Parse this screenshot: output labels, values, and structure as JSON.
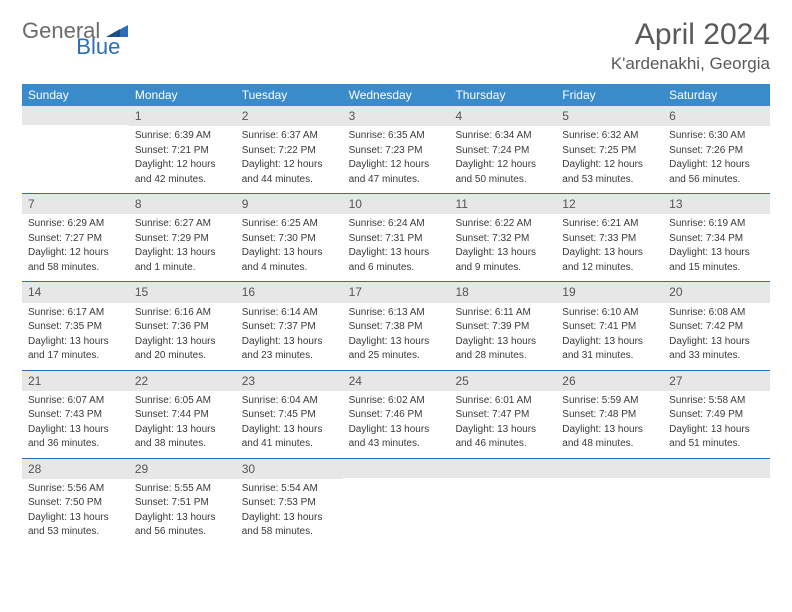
{
  "logo": {
    "part1": "General",
    "part2": "Blue"
  },
  "title": "April 2024",
  "location": "K'ardenakhi, Georgia",
  "colors": {
    "header_bg": "#3a8bc9",
    "header_text": "#ffffff",
    "daynum_bg": "#e7e7e7",
    "row_border": "#2a6fb5",
    "logo_gray": "#6b6b6b",
    "logo_blue": "#2a6fb5"
  },
  "weekdays": [
    "Sunday",
    "Monday",
    "Tuesday",
    "Wednesday",
    "Thursday",
    "Friday",
    "Saturday"
  ],
  "weeks": [
    [
      {
        "day": "",
        "sunrise": "",
        "sunset": "",
        "daylight1": "",
        "daylight2": ""
      },
      {
        "day": "1",
        "sunrise": "Sunrise: 6:39 AM",
        "sunset": "Sunset: 7:21 PM",
        "daylight1": "Daylight: 12 hours",
        "daylight2": "and 42 minutes."
      },
      {
        "day": "2",
        "sunrise": "Sunrise: 6:37 AM",
        "sunset": "Sunset: 7:22 PM",
        "daylight1": "Daylight: 12 hours",
        "daylight2": "and 44 minutes."
      },
      {
        "day": "3",
        "sunrise": "Sunrise: 6:35 AM",
        "sunset": "Sunset: 7:23 PM",
        "daylight1": "Daylight: 12 hours",
        "daylight2": "and 47 minutes."
      },
      {
        "day": "4",
        "sunrise": "Sunrise: 6:34 AM",
        "sunset": "Sunset: 7:24 PM",
        "daylight1": "Daylight: 12 hours",
        "daylight2": "and 50 minutes."
      },
      {
        "day": "5",
        "sunrise": "Sunrise: 6:32 AM",
        "sunset": "Sunset: 7:25 PM",
        "daylight1": "Daylight: 12 hours",
        "daylight2": "and 53 minutes."
      },
      {
        "day": "6",
        "sunrise": "Sunrise: 6:30 AM",
        "sunset": "Sunset: 7:26 PM",
        "daylight1": "Daylight: 12 hours",
        "daylight2": "and 56 minutes."
      }
    ],
    [
      {
        "day": "7",
        "sunrise": "Sunrise: 6:29 AM",
        "sunset": "Sunset: 7:27 PM",
        "daylight1": "Daylight: 12 hours",
        "daylight2": "and 58 minutes."
      },
      {
        "day": "8",
        "sunrise": "Sunrise: 6:27 AM",
        "sunset": "Sunset: 7:29 PM",
        "daylight1": "Daylight: 13 hours",
        "daylight2": "and 1 minute."
      },
      {
        "day": "9",
        "sunrise": "Sunrise: 6:25 AM",
        "sunset": "Sunset: 7:30 PM",
        "daylight1": "Daylight: 13 hours",
        "daylight2": "and 4 minutes."
      },
      {
        "day": "10",
        "sunrise": "Sunrise: 6:24 AM",
        "sunset": "Sunset: 7:31 PM",
        "daylight1": "Daylight: 13 hours",
        "daylight2": "and 6 minutes."
      },
      {
        "day": "11",
        "sunrise": "Sunrise: 6:22 AM",
        "sunset": "Sunset: 7:32 PM",
        "daylight1": "Daylight: 13 hours",
        "daylight2": "and 9 minutes."
      },
      {
        "day": "12",
        "sunrise": "Sunrise: 6:21 AM",
        "sunset": "Sunset: 7:33 PM",
        "daylight1": "Daylight: 13 hours",
        "daylight2": "and 12 minutes."
      },
      {
        "day": "13",
        "sunrise": "Sunrise: 6:19 AM",
        "sunset": "Sunset: 7:34 PM",
        "daylight1": "Daylight: 13 hours",
        "daylight2": "and 15 minutes."
      }
    ],
    [
      {
        "day": "14",
        "sunrise": "Sunrise: 6:17 AM",
        "sunset": "Sunset: 7:35 PM",
        "daylight1": "Daylight: 13 hours",
        "daylight2": "and 17 minutes."
      },
      {
        "day": "15",
        "sunrise": "Sunrise: 6:16 AM",
        "sunset": "Sunset: 7:36 PM",
        "daylight1": "Daylight: 13 hours",
        "daylight2": "and 20 minutes."
      },
      {
        "day": "16",
        "sunrise": "Sunrise: 6:14 AM",
        "sunset": "Sunset: 7:37 PM",
        "daylight1": "Daylight: 13 hours",
        "daylight2": "and 23 minutes."
      },
      {
        "day": "17",
        "sunrise": "Sunrise: 6:13 AM",
        "sunset": "Sunset: 7:38 PM",
        "daylight1": "Daylight: 13 hours",
        "daylight2": "and 25 minutes."
      },
      {
        "day": "18",
        "sunrise": "Sunrise: 6:11 AM",
        "sunset": "Sunset: 7:39 PM",
        "daylight1": "Daylight: 13 hours",
        "daylight2": "and 28 minutes."
      },
      {
        "day": "19",
        "sunrise": "Sunrise: 6:10 AM",
        "sunset": "Sunset: 7:41 PM",
        "daylight1": "Daylight: 13 hours",
        "daylight2": "and 31 minutes."
      },
      {
        "day": "20",
        "sunrise": "Sunrise: 6:08 AM",
        "sunset": "Sunset: 7:42 PM",
        "daylight1": "Daylight: 13 hours",
        "daylight2": "and 33 minutes."
      }
    ],
    [
      {
        "day": "21",
        "sunrise": "Sunrise: 6:07 AM",
        "sunset": "Sunset: 7:43 PM",
        "daylight1": "Daylight: 13 hours",
        "daylight2": "and 36 minutes."
      },
      {
        "day": "22",
        "sunrise": "Sunrise: 6:05 AM",
        "sunset": "Sunset: 7:44 PM",
        "daylight1": "Daylight: 13 hours",
        "daylight2": "and 38 minutes."
      },
      {
        "day": "23",
        "sunrise": "Sunrise: 6:04 AM",
        "sunset": "Sunset: 7:45 PM",
        "daylight1": "Daylight: 13 hours",
        "daylight2": "and 41 minutes."
      },
      {
        "day": "24",
        "sunrise": "Sunrise: 6:02 AM",
        "sunset": "Sunset: 7:46 PM",
        "daylight1": "Daylight: 13 hours",
        "daylight2": "and 43 minutes."
      },
      {
        "day": "25",
        "sunrise": "Sunrise: 6:01 AM",
        "sunset": "Sunset: 7:47 PM",
        "daylight1": "Daylight: 13 hours",
        "daylight2": "and 46 minutes."
      },
      {
        "day": "26",
        "sunrise": "Sunrise: 5:59 AM",
        "sunset": "Sunset: 7:48 PM",
        "daylight1": "Daylight: 13 hours",
        "daylight2": "and 48 minutes."
      },
      {
        "day": "27",
        "sunrise": "Sunrise: 5:58 AM",
        "sunset": "Sunset: 7:49 PM",
        "daylight1": "Daylight: 13 hours",
        "daylight2": "and 51 minutes."
      }
    ],
    [
      {
        "day": "28",
        "sunrise": "Sunrise: 5:56 AM",
        "sunset": "Sunset: 7:50 PM",
        "daylight1": "Daylight: 13 hours",
        "daylight2": "and 53 minutes."
      },
      {
        "day": "29",
        "sunrise": "Sunrise: 5:55 AM",
        "sunset": "Sunset: 7:51 PM",
        "daylight1": "Daylight: 13 hours",
        "daylight2": "and 56 minutes."
      },
      {
        "day": "30",
        "sunrise": "Sunrise: 5:54 AM",
        "sunset": "Sunset: 7:53 PM",
        "daylight1": "Daylight: 13 hours",
        "daylight2": "and 58 minutes."
      },
      {
        "day": "",
        "sunrise": "",
        "sunset": "",
        "daylight1": "",
        "daylight2": ""
      },
      {
        "day": "",
        "sunrise": "",
        "sunset": "",
        "daylight1": "",
        "daylight2": ""
      },
      {
        "day": "",
        "sunrise": "",
        "sunset": "",
        "daylight1": "",
        "daylight2": ""
      },
      {
        "day": "",
        "sunrise": "",
        "sunset": "",
        "daylight1": "",
        "daylight2": ""
      }
    ]
  ]
}
